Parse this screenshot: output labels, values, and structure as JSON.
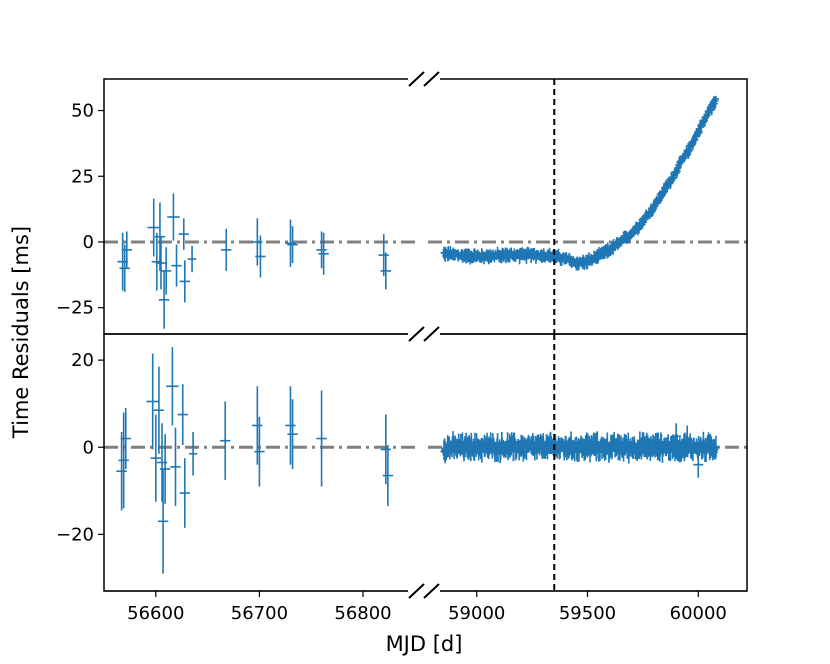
{
  "colors": {
    "series": "#1f77b4",
    "reference": "#808080",
    "event": "#000000"
  },
  "chart_data": {
    "type": "scatter",
    "xlabel": "MJD [d]",
    "ylabel": "Time Residuals [ms]",
    "x_segments": [
      {
        "range": [
          56550,
          56855
        ],
        "ticks": [
          56600,
          56700,
          56800
        ],
        "tick_labels": [
          "56600",
          "56700",
          "56800"
        ]
      },
      {
        "range": [
          58780,
          60220
        ],
        "ticks": [
          59000,
          59500,
          60000
        ],
        "tick_labels": [
          "59000",
          "59500",
          "60000"
        ]
      }
    ],
    "event_mjd": 59350,
    "panels": [
      {
        "name": "prefit",
        "ylim": [
          -35,
          62
        ],
        "yticks": [
          -25,
          0,
          25,
          50
        ],
        "ytick_labels": [
          "−25",
          "0",
          "25",
          "50"
        ],
        "reference_y": 0,
        "early_points": [
          {
            "x": 56568,
            "y": -7.5,
            "err": 11,
            "xerr": 5
          },
          {
            "x": 56570,
            "y": -10,
            "err": 9,
            "xerr": 5
          },
          {
            "x": 56572,
            "y": -3,
            "err": 7,
            "xerr": 5
          },
          {
            "x": 56598,
            "y": 5.5,
            "err": 11,
            "xerr": 6
          },
          {
            "x": 56601,
            "y": -7.5,
            "err": 11,
            "xerr": 5
          },
          {
            "x": 56604,
            "y": 2,
            "err": 13,
            "xerr": 5
          },
          {
            "x": 56605,
            "y": -8,
            "err": 10,
            "xerr": 5
          },
          {
            "x": 56608,
            "y": -22,
            "err": 11,
            "xerr": 5
          },
          {
            "x": 56610,
            "y": -11,
            "err": 9,
            "xerr": 5
          },
          {
            "x": 56617,
            "y": 9.5,
            "err": 9,
            "xerr": 6
          },
          {
            "x": 56620,
            "y": -9,
            "err": 8,
            "xerr": 5
          },
          {
            "x": 56627,
            "y": 3,
            "err": 6,
            "xerr": 5
          },
          {
            "x": 56628,
            "y": -15,
            "err": 8,
            "xerr": 5
          },
          {
            "x": 56635,
            "y": -6.5,
            "err": 5,
            "xerr": 4
          },
          {
            "x": 56668,
            "y": -3,
            "err": 8,
            "xerr": 5
          },
          {
            "x": 56698,
            "y": 0,
            "err": 9,
            "xerr": 5
          },
          {
            "x": 56701,
            "y": -5.5,
            "err": 8,
            "xerr": 5
          },
          {
            "x": 56730,
            "y": -0.5,
            "err": 9,
            "xerr": 5
          },
          {
            "x": 56732,
            "y": -1,
            "err": 7,
            "xerr": 5
          },
          {
            "x": 56760,
            "y": -3,
            "err": 7,
            "xerr": 5
          },
          {
            "x": 56762,
            "y": -4.5,
            "err": 8,
            "xerr": 5
          },
          {
            "x": 56820,
            "y": -5,
            "err": 8,
            "xerr": 5
          },
          {
            "x": 56822,
            "y": -11,
            "err": 7,
            "xerr": 5
          }
        ],
        "late_trend": {
          "x": [
            58850,
            59000,
            59150,
            59300,
            59350,
            59400,
            59450,
            59500,
            59550,
            59600,
            59650,
            59700,
            59750,
            59800,
            59850,
            59900,
            59950,
            60000,
            60050,
            60080
          ],
          "y": [
            -4.5,
            -5.5,
            -5,
            -5,
            -5.5,
            -6.5,
            -8,
            -7.5,
            -5.5,
            -3,
            0,
            3.5,
            8,
            13.5,
            20,
            27,
            34,
            42,
            50,
            54
          ]
        }
      },
      {
        "name": "postfit",
        "ylim": [
          -33,
          26
        ],
        "yticks": [
          -20,
          0,
          20
        ],
        "ytick_labels": [
          "−20",
          "0",
          "20"
        ],
        "reference_y": 0,
        "early_points": [
          {
            "x": 56567,
            "y": -5.5,
            "err": 9,
            "xerr": 5
          },
          {
            "x": 56569,
            "y": -3,
            "err": 11,
            "xerr": 5
          },
          {
            "x": 56571,
            "y": 2,
            "err": 7,
            "xerr": 5
          },
          {
            "x": 56597,
            "y": 10.5,
            "err": 11,
            "xerr": 6
          },
          {
            "x": 56600,
            "y": -2.5,
            "err": 10,
            "xerr": 5
          },
          {
            "x": 56603,
            "y": 8.5,
            "err": 10,
            "xerr": 5
          },
          {
            "x": 56606,
            "y": -3.5,
            "err": 9,
            "xerr": 5
          },
          {
            "x": 56607,
            "y": -17,
            "err": 12,
            "xerr": 5
          },
          {
            "x": 56609,
            "y": -5,
            "err": 8,
            "xerr": 5
          },
          {
            "x": 56616,
            "y": 14,
            "err": 9,
            "xerr": 6
          },
          {
            "x": 56619,
            "y": -4.5,
            "err": 9,
            "xerr": 5
          },
          {
            "x": 56626,
            "y": 7.5,
            "err": 7,
            "xerr": 5
          },
          {
            "x": 56628,
            "y": -10.5,
            "err": 8,
            "xerr": 5
          },
          {
            "x": 56636,
            "y": -1.5,
            "err": 5,
            "xerr": 4
          },
          {
            "x": 56667,
            "y": 1.5,
            "err": 9,
            "xerr": 5
          },
          {
            "x": 56698,
            "y": 5,
            "err": 9,
            "xerr": 5
          },
          {
            "x": 56700,
            "y": -1,
            "err": 8,
            "xerr": 5
          },
          {
            "x": 56730,
            "y": 5,
            "err": 9,
            "xerr": 5
          },
          {
            "x": 56732,
            "y": 3,
            "err": 8,
            "xerr": 5
          },
          {
            "x": 56760,
            "y": 2,
            "err": 11,
            "xerr": 5
          },
          {
            "x": 56822,
            "y": -0.5,
            "err": 8,
            "xerr": 5
          },
          {
            "x": 56824,
            "y": -6.5,
            "err": 7,
            "xerr": 5
          }
        ],
        "late_trend": {
          "x": [
            58850,
            60080
          ],
          "y": [
            0,
            0
          ]
        }
      }
    ]
  }
}
